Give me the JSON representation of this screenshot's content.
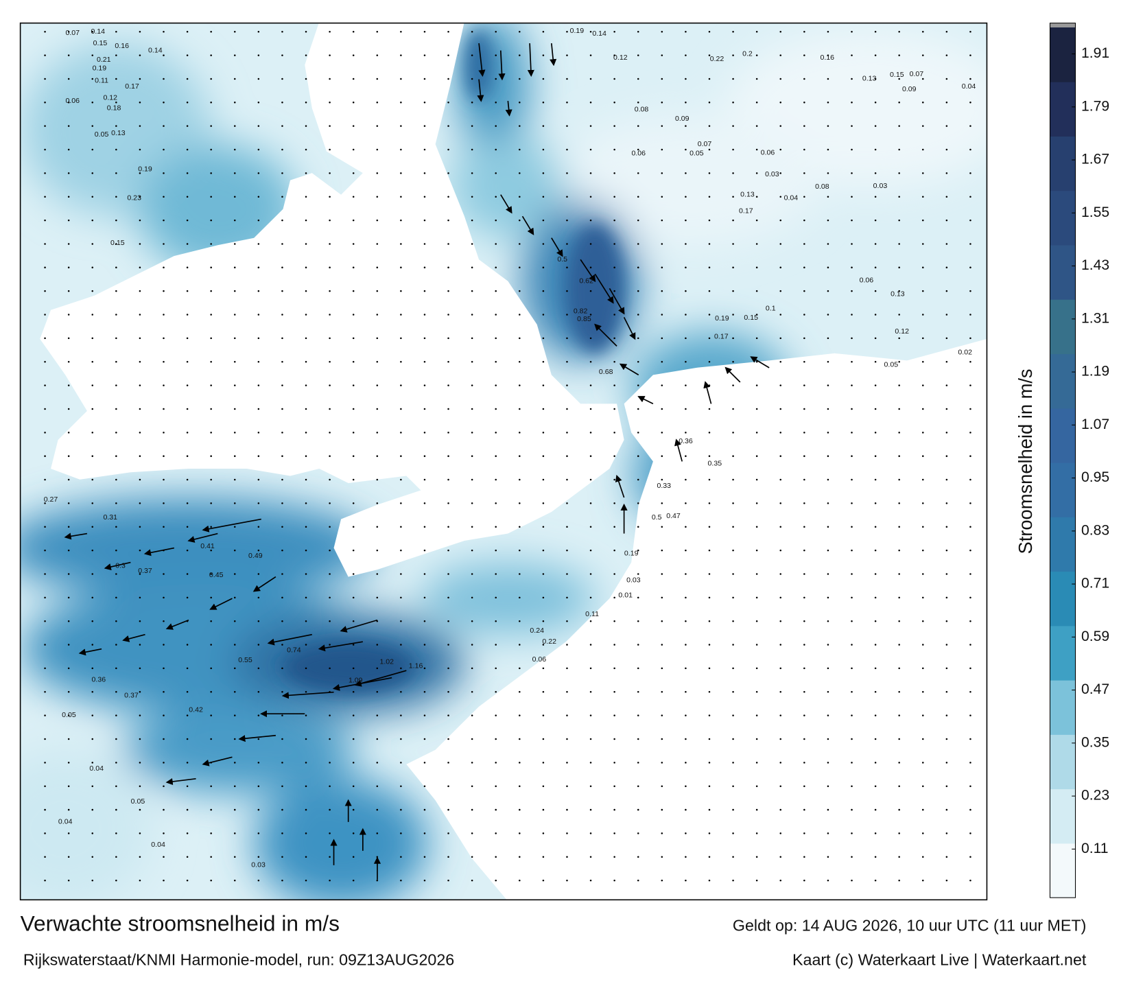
{
  "title": "Verwachte stroomsnelheid in m/s",
  "subtitle": "Rijkswaterstaat/KNMI Harmonie-model, run: 09Z13AUG2026",
  "valid": "Geldt op: 14 AUG 2026, 10 uur UTC (11 uur MET)",
  "credit": "Kaart (c) Waterkaart Live | Waterkaart.net",
  "colorbar": {
    "label": "Stroomsnelheid in m/s",
    "lim": [
      0,
      1.97
    ],
    "ticks": [
      0.11,
      0.23,
      0.35,
      0.47,
      0.59,
      0.71,
      0.83,
      0.95,
      1.07,
      1.19,
      1.31,
      1.43,
      1.55,
      1.67,
      1.79,
      1.91
    ],
    "colors": [
      "#f3f9fb",
      "#d4ecf3",
      "#afdae8",
      "#7cc2da",
      "#3ea0c4",
      "#2a8bb5",
      "#2f7aab",
      "#336ea5",
      "#3566a0",
      "#356a96",
      "#37718a",
      "#2f5586",
      "#2b4a7c",
      "#27406f",
      "#222f5a",
      "#1b2340"
    ]
  },
  "map": {
    "labels": [
      0.07,
      0.14,
      0.15,
      0.16,
      0.14,
      0.21,
      0.19,
      0.11,
      0.17,
      0.06,
      0.12,
      0.18,
      0.05,
      0.13,
      0.19,
      0.23,
      0.15,
      0.27,
      0.31,
      0.41,
      0.49,
      0.3,
      0.37,
      0.45,
      0.55,
      0.74,
      1.02,
      1.16,
      1.09,
      0.36,
      0.37,
      0.42,
      0.05,
      0.04,
      0.05,
      0.04,
      0.04,
      0.03,
      0.19,
      0.14,
      0.12,
      0.22,
      0.2,
      0.16,
      0.13,
      0.15,
      0.07,
      0.09,
      0.04,
      0.08,
      0.09,
      0.07,
      0.05,
      0.06,
      0.06,
      0.03,
      0.08,
      0.03,
      0.04,
      0.13,
      0.17,
      0.06,
      0.1,
      0.15,
      0.19,
      0.17,
      0.5,
      0.62,
      0.82,
      0.85,
      0.68,
      0.36,
      0.35,
      0.33,
      0.47,
      0.5,
      0.19,
      0.03,
      0.01,
      0.11,
      0.24,
      0.22,
      0.06,
      0.05,
      0.02,
      0.12,
      0.13
    ]
  }
}
